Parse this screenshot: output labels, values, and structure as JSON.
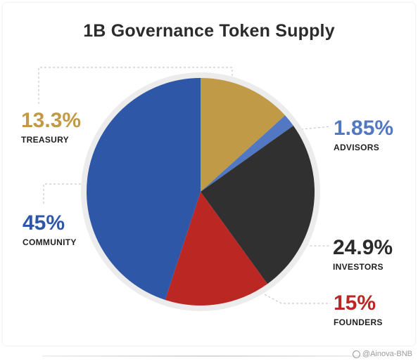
{
  "chart_data": {
    "type": "pie",
    "title": "1B Governance Token Supply",
    "slices": [
      {
        "name": "TREASURY",
        "value": 13.3,
        "label": "13.3%",
        "color": "#c09a46"
      },
      {
        "name": "ADVISORS",
        "value": 1.85,
        "label": "1.85%",
        "color": "#5278c4"
      },
      {
        "name": "INVESTORS",
        "value": 24.9,
        "label": "24.9%",
        "color": "#303030"
      },
      {
        "name": "FOUNDERS",
        "value": 15,
        "label": "15%",
        "color": "#bb2723"
      },
      {
        "name": "COMMUNITY",
        "value": 45,
        "label": "45%",
        "color": "#2f57a8"
      }
    ]
  },
  "watermark": "@Ainova-BNB"
}
